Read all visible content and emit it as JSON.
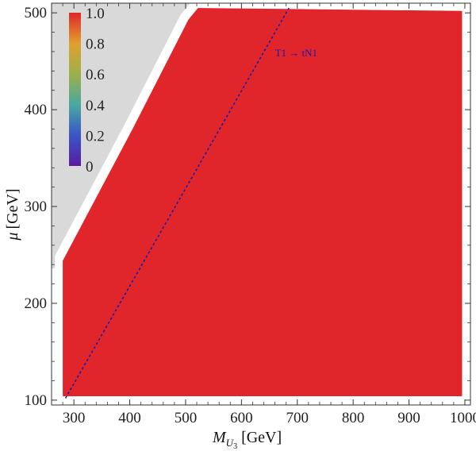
{
  "chart_data": {
    "type": "heatmap",
    "title": "",
    "xlabel_main": "M",
    "xlabel_sub": "U",
    "xlabel_subsub": "3",
    "xlabel_unit": "[GeV]",
    "ylabel_main": "μ",
    "ylabel_unit": "[GeV]",
    "xlim": [
      260,
      1010
    ],
    "ylim": [
      95,
      510
    ],
    "xticks": [
      300,
      400,
      500,
      600,
      700,
      800,
      900,
      1000
    ],
    "yticks": [
      100,
      200,
      300,
      400,
      500
    ],
    "grid": false,
    "colorbar": {
      "labels": [
        "1.0",
        "0.8",
        "0.6",
        "0.4",
        "0.2",
        "0"
      ],
      "values": [
        1.0,
        0.8,
        0.6,
        0.4,
        0.2,
        0.0
      ],
      "colors": [
        "#e0262a",
        "#e0a030",
        "#9db04a",
        "#4aa8a0",
        "#3a55c8",
        "#5a1aa0"
      ],
      "placement": "top-left"
    },
    "region_value": 1.0,
    "region_color": "#e0262a",
    "excluded_color": "#d9d9d9",
    "region_boundary": [
      [
        280,
        244
      ],
      [
        405,
        380
      ],
      [
        505,
        493
      ],
      [
        522,
        505
      ]
    ],
    "region_xmax": 995,
    "region_ymin": 104,
    "region_ymax": 502,
    "threshold_line": {
      "label": "T1 → tN1",
      "points": [
        [
          285,
          102
        ],
        [
          685,
          505
        ]
      ],
      "color": "#1a1aa8",
      "style": "dashed"
    }
  }
}
